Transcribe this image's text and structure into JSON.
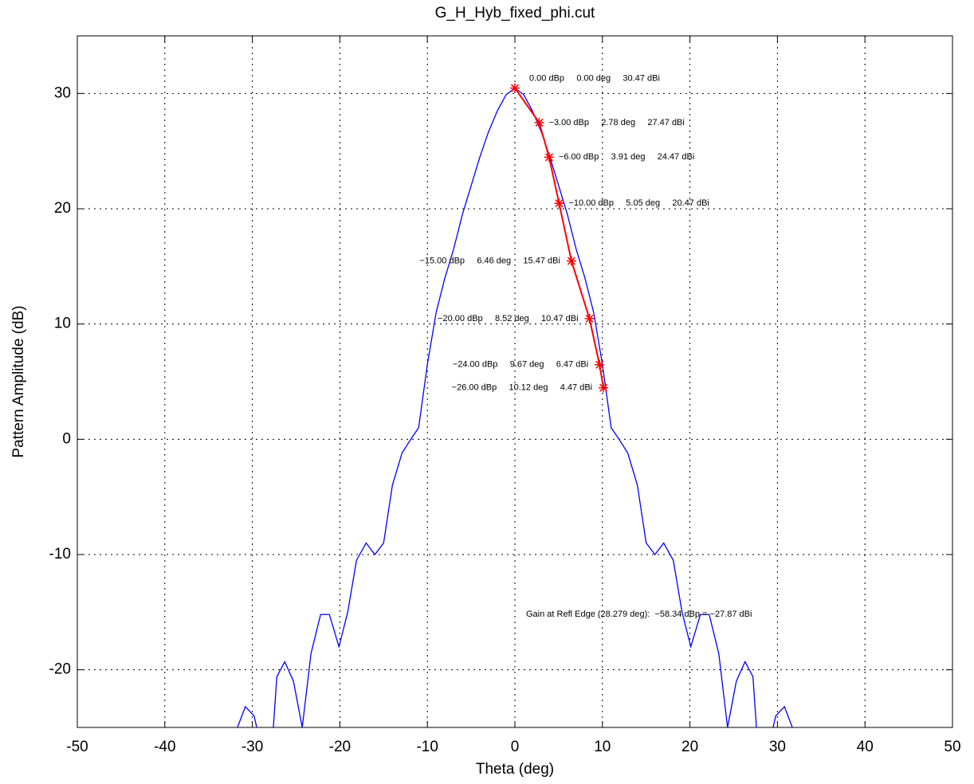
{
  "chart_data": {
    "type": "line",
    "title": "G_H_Hyb_fixed_phi.cut",
    "x_label": "Theta  (deg)",
    "y_label": "Pattern Amplitude  (dB)",
    "xlim": [
      -50,
      50
    ],
    "xticks": [
      -50,
      -40,
      -30,
      -20,
      -10,
      0,
      10,
      20,
      30,
      40,
      50
    ],
    "ylim": [
      -25,
      35
    ],
    "yticks": [
      -20,
      -10,
      0,
      10,
      20,
      30
    ],
    "grid": true,
    "series": [
      {
        "color": "#0000ff",
        "x": [
          -31.7,
          -30.8,
          -29.8,
          -29.5,
          -28.5,
          -27.6,
          -27.2,
          -26.3,
          -25.3,
          -24.3,
          -23.3,
          -22.2,
          -21.2,
          -20.1,
          -19.1,
          -18.1,
          -17,
          -16,
          -15,
          -14,
          -12.9,
          -11.9,
          -11,
          -10,
          -9,
          -8,
          -7,
          -6,
          -5,
          -4,
          -3,
          -2,
          -1,
          0,
          1,
          2,
          3,
          4,
          5,
          6,
          7,
          8,
          9,
          10,
          11,
          11.9,
          12.9,
          14,
          15,
          16,
          17,
          18.1,
          19.1,
          20.1,
          21.2,
          22.2,
          23.3,
          24.3,
          25.3,
          26.3,
          27.2,
          27.6,
          28.5,
          29.5,
          29.8,
          30.8,
          31.7
        ],
        "values": [
          -25,
          -23.2,
          -24,
          -25,
          null,
          -25,
          -20.6,
          -19.3,
          -21,
          -25,
          -18.6,
          -15.2,
          -15.2,
          -18,
          -15,
          -10.5,
          -9,
          -10,
          -9,
          -4,
          -1.2,
          0,
          1,
          6.5,
          11,
          14,
          16.5,
          19.5,
          22,
          24.5,
          26.7,
          28.5,
          29.9,
          30.47,
          29.9,
          28.5,
          26.7,
          24.5,
          22,
          19.5,
          16.5,
          14,
          11,
          6.5,
          1,
          0,
          -1.2,
          -4,
          -9,
          -10,
          -9,
          -10.5,
          -15,
          -18,
          -15.2,
          -15.2,
          -18.6,
          -25,
          -21,
          -19.3,
          -20.6,
          -25,
          null,
          -25,
          -24,
          -23.2,
          -25
        ]
      },
      {
        "color": "#ff0000",
        "x": [
          0,
          2.78,
          3.91,
          5.05,
          6.46,
          8.52,
          9.67,
          10.12
        ],
        "values": [
          30.47,
          27.47,
          24.47,
          20.47,
          15.47,
          10.47,
          6.47,
          4.47
        ],
        "annotations": [
          "0.00 dBp     0.00 deg     30.47 dBi",
          "−3.00 dBp     2.78 deg     27.47 dBi",
          "−6.00 dBp     3.91 deg     24.47 dBi",
          "−10.00 dBp     5.05 deg     20.47 dBi",
          "−15.00 dBp     6.46 deg     15.47 dBi",
          "−20.00 dBp     8.52 deg     10.47 dBi",
          "−24.00 dBp     9.67 deg     6.47 dBi",
          "−26.00 dBp     10.12 deg     4.47 dBi"
        ]
      }
    ],
    "note": "Gain at Refl Edge (28.279 deg):  −58.34 dBp = −27.87 dBi"
  }
}
